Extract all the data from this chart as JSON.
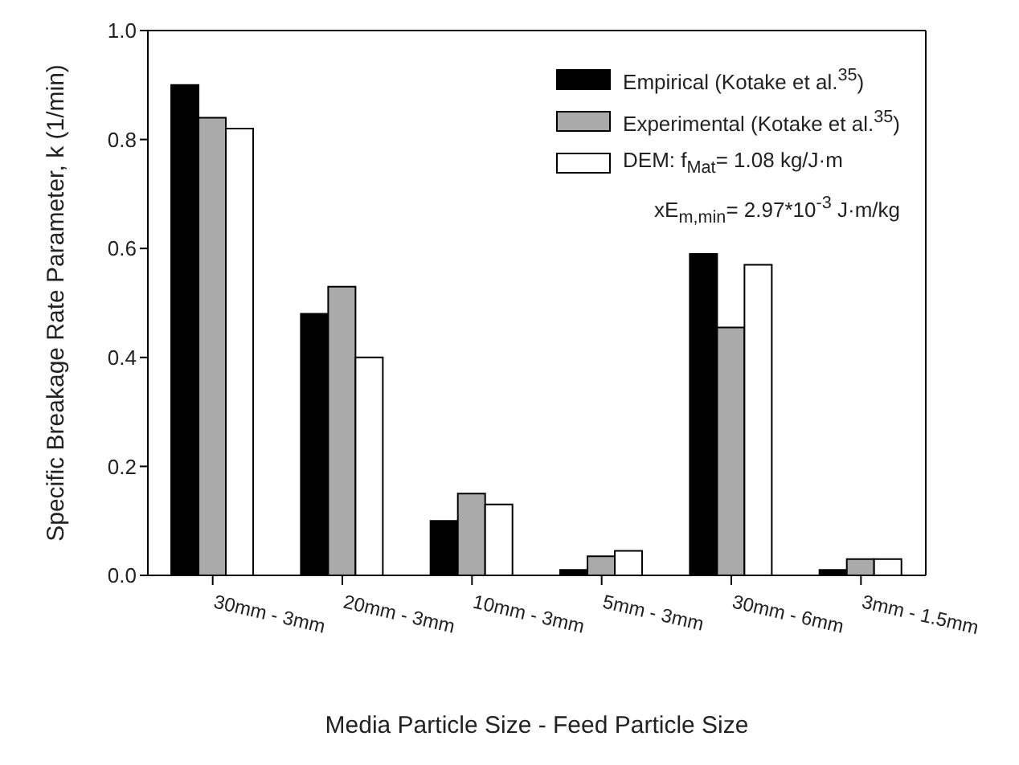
{
  "chart_data": {
    "type": "bar",
    "xlabel": "Media Particle Size - Feed Particle Size",
    "ylabel": "Specific Breakage Rate Parameter, k (1/min)",
    "categories": [
      "30mm - 3mm",
      "20mm - 3mm",
      "10mm - 3mm",
      "5mm - 3mm",
      "30mm - 6mm",
      "3mm - 1.5mm"
    ],
    "series": [
      {
        "name": "Empirical (Kotake et al.$^{35}$)",
        "color": "#000000",
        "values": [
          0.9,
          0.48,
          0.1,
          0.01,
          0.59,
          0.01
        ]
      },
      {
        "name": "Experimental (Kotake et al.$^{35}$)",
        "color": "#aaaaaa",
        "values": [
          0.84,
          0.53,
          0.15,
          0.035,
          0.455,
          0.03
        ]
      },
      {
        "name": "DEM: f$_{Mat}$= 1.08 kg/J·m",
        "color": "#ffffff",
        "values": [
          0.82,
          0.4,
          0.13,
          0.045,
          0.57,
          0.03
        ]
      }
    ],
    "annotations": [
      "xE$_{m,min}$= 2.97*10$^{-3}$ J·m/kg"
    ],
    "ylim": [
      0,
      1.0
    ],
    "yticks": [
      {
        "value": 0,
        "label": "0.0"
      },
      {
        "value": 0.2,
        "label": "0.2"
      },
      {
        "value": 0.4,
        "label": "0.4"
      },
      {
        "value": 0.6,
        "label": "0.6"
      },
      {
        "value": 0.8,
        "label": "0.8"
      },
      {
        "value": 1.0,
        "label": "1.0"
      }
    ],
    "legend": "top right",
    "grid": false
  }
}
